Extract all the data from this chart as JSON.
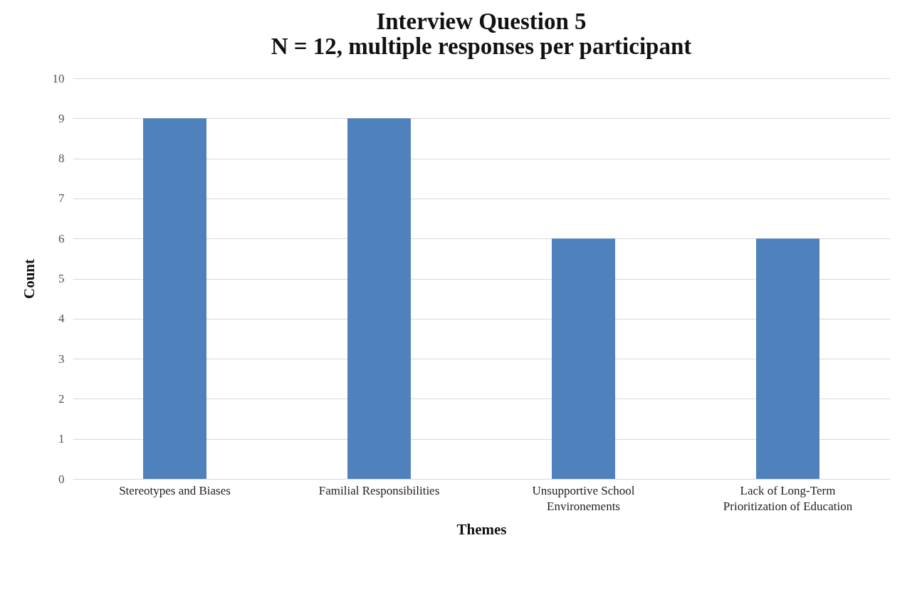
{
  "chart_data": {
    "type": "bar",
    "title": "Interview Question 5",
    "subtitle": "N = 12, multiple responses per participant",
    "xlabel": "Themes",
    "ylabel": "Count",
    "categories": [
      "Stereotypes and Biases",
      "Familial Responsibilities",
      "Unsupportive School Environements",
      "Lack of Long-Term Prioritization of Education"
    ],
    "values": [
      9,
      9,
      6,
      6
    ],
    "color": "#4f81bd",
    "ylim": [
      0,
      10
    ],
    "yticks": [
      0,
      1,
      2,
      3,
      4,
      5,
      6,
      7,
      8,
      9,
      10
    ],
    "grid": "y"
  }
}
